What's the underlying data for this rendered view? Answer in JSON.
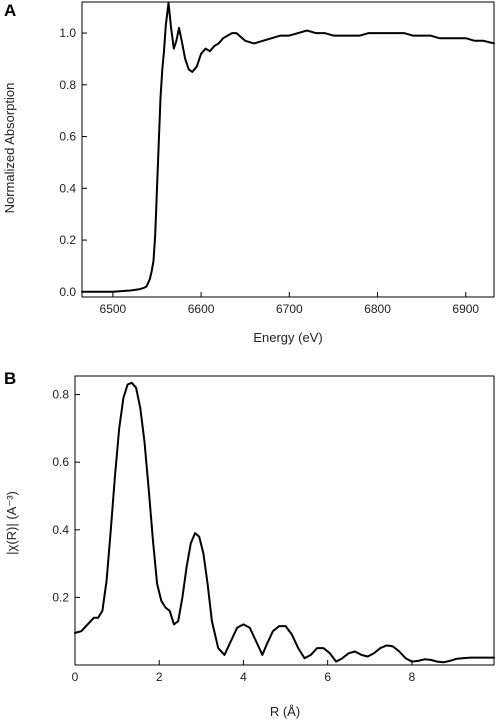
{
  "chart_data": [
    {
      "panel_label": "A",
      "type": "line",
      "xlabel": "Energy (eV)",
      "ylabel": "Normalized Absorption",
      "xlim": [
        6465,
        6932
      ],
      "ylim": [
        -0.02,
        1.12
      ],
      "xticks": [
        6500,
        6600,
        6700,
        6800,
        6900
      ],
      "yticks": [
        0.0,
        0.2,
        0.4,
        0.6,
        0.8,
        1.0
      ],
      "xtick_labels": [
        "6500",
        "6600",
        "6700",
        "6800",
        "6900"
      ],
      "ytick_labels": [
        "0.0",
        "0.2",
        "0.4",
        "0.6",
        "0.8",
        "1.0"
      ],
      "grid": false,
      "series": [
        {
          "x": [
            6465,
            6500,
            6520,
            6530,
            6535,
            6538,
            6540,
            6542,
            6544,
            6546,
            6548,
            6550,
            6552,
            6554,
            6556,
            6558,
            6560,
            6563,
            6566,
            6569,
            6572,
            6575,
            6578,
            6582,
            6586,
            6590,
            6595,
            6600,
            6605,
            6610,
            6615,
            6620,
            6625,
            6630,
            6635,
            6640,
            6650,
            6660,
            6670,
            6680,
            6690,
            6700,
            6710,
            6720,
            6730,
            6740,
            6750,
            6760,
            6770,
            6780,
            6790,
            6800,
            6810,
            6820,
            6830,
            6840,
            6850,
            6860,
            6870,
            6880,
            6890,
            6900,
            6910,
            6920,
            6932
          ],
          "y": [
            0.0,
            0.0,
            0.005,
            0.01,
            0.015,
            0.02,
            0.035,
            0.05,
            0.08,
            0.12,
            0.22,
            0.4,
            0.58,
            0.75,
            0.86,
            0.93,
            1.03,
            1.12,
            1.02,
            0.94,
            0.97,
            1.02,
            0.97,
            0.9,
            0.86,
            0.85,
            0.87,
            0.92,
            0.94,
            0.93,
            0.95,
            0.96,
            0.98,
            0.99,
            1.0,
            1.0,
            0.97,
            0.96,
            0.97,
            0.98,
            0.99,
            0.99,
            1.0,
            1.01,
            1.0,
            1.0,
            0.99,
            0.99,
            0.99,
            0.99,
            1.0,
            1.0,
            1.0,
            1.0,
            1.0,
            0.99,
            0.99,
            0.99,
            0.98,
            0.98,
            0.98,
            0.98,
            0.97,
            0.97,
            0.96
          ]
        }
      ]
    },
    {
      "panel_label": "B",
      "type": "line",
      "xlabel": "R (Å)",
      "ylabel": "|χ(R)| (A⁻³)",
      "xlim": [
        0,
        9.95
      ],
      "ylim": [
        0.0,
        0.855
      ],
      "xticks": [
        0,
        2,
        4,
        6,
        8
      ],
      "yticks": [
        0.2,
        0.4,
        0.6,
        0.8
      ],
      "xtick_labels": [
        "0",
        "2",
        "4",
        "6",
        "8"
      ],
      "ytick_labels": [
        "0.2",
        "0.4",
        "0.6",
        "0.8"
      ],
      "grid": false,
      "series": [
        {
          "x": [
            0.0,
            0.15,
            0.3,
            0.45,
            0.55,
            0.65,
            0.75,
            0.85,
            0.95,
            1.05,
            1.15,
            1.25,
            1.35,
            1.45,
            1.55,
            1.65,
            1.75,
            1.85,
            1.95,
            2.05,
            2.15,
            2.25,
            2.35,
            2.45,
            2.55,
            2.65,
            2.75,
            2.85,
            2.95,
            3.05,
            3.15,
            3.25,
            3.4,
            3.55,
            3.7,
            3.85,
            4.0,
            4.15,
            4.3,
            4.45,
            4.55,
            4.7,
            4.85,
            5.0,
            5.15,
            5.3,
            5.45,
            5.6,
            5.75,
            5.9,
            6.05,
            6.2,
            6.35,
            6.5,
            6.65,
            6.8,
            6.95,
            7.1,
            7.25,
            7.4,
            7.55,
            7.7,
            7.85,
            8.0,
            8.15,
            8.3,
            8.45,
            8.6,
            8.75,
            8.9,
            9.05,
            9.2,
            9.4,
            9.6,
            9.8,
            9.95
          ],
          "y": [
            0.095,
            0.1,
            0.12,
            0.14,
            0.14,
            0.16,
            0.25,
            0.4,
            0.56,
            0.7,
            0.79,
            0.83,
            0.835,
            0.82,
            0.76,
            0.66,
            0.52,
            0.37,
            0.24,
            0.19,
            0.17,
            0.16,
            0.12,
            0.13,
            0.2,
            0.29,
            0.36,
            0.39,
            0.38,
            0.33,
            0.24,
            0.13,
            0.05,
            0.03,
            0.07,
            0.11,
            0.12,
            0.11,
            0.07,
            0.03,
            0.06,
            0.1,
            0.115,
            0.115,
            0.09,
            0.05,
            0.02,
            0.03,
            0.05,
            0.05,
            0.035,
            0.01,
            0.02,
            0.035,
            0.04,
            0.03,
            0.025,
            0.035,
            0.05,
            0.058,
            0.055,
            0.04,
            0.02,
            0.01,
            0.012,
            0.017,
            0.015,
            0.01,
            0.008,
            0.012,
            0.018,
            0.02,
            0.022,
            0.022,
            0.022,
            0.022
          ]
        }
      ]
    }
  ]
}
